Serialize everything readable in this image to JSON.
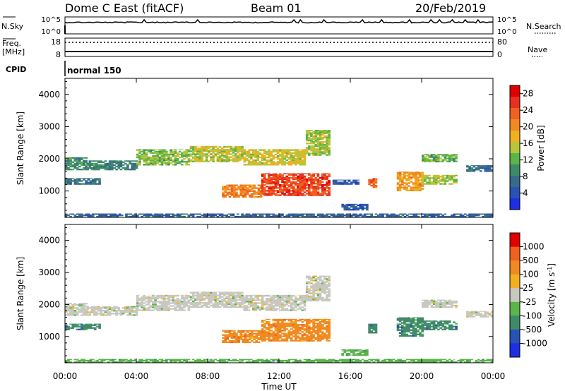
{
  "header": {
    "station": "Dome C East (fitACF)",
    "beam": "Beam 01",
    "date": "20/Feb/2019"
  },
  "strip": {
    "nsky_label": "N.Sky",
    "nsky_ticks": [
      "10^5",
      "10^0"
    ],
    "nsearch_label": "N.Search",
    "freq_label_1": "Freq.",
    "freq_label_2": "[MHz]",
    "freq_ticks": [
      "18",
      "8"
    ],
    "nave_label": "Nave",
    "nave_ticks": [
      "80",
      "0"
    ],
    "cpid_label": "CPID",
    "cpid_value": "normal 150"
  },
  "x_axis": {
    "label": "Time UT",
    "ticks": [
      "00:00",
      "04:00",
      "08:00",
      "12:00",
      "16:00",
      "20:00",
      "00:00"
    ]
  },
  "chart_data": [
    {
      "type": "heatmap",
      "name": "power",
      "ylabel": "Slant Range [km]",
      "ylim": [
        180,
        4500
      ],
      "y_ticks": [
        1000,
        2000,
        3000,
        4000
      ],
      "x_unit": "hours UT",
      "xlim": [
        0,
        24
      ],
      "colorbar": {
        "label": "Power [dB]",
        "ticks": [
          "4",
          "8",
          "12",
          "16",
          "20",
          "24",
          "28"
        ],
        "range": [
          0,
          30
        ],
        "colors": [
          "#1d2fe0",
          "#2a52b5",
          "#3a6a8a",
          "#3f8a6a",
          "#5ab54a",
          "#b8c43a",
          "#f0b020",
          "#f08a20",
          "#f06020",
          "#e83020",
          "#e00000"
        ]
      },
      "regions": [
        {
          "t": [
            0.0,
            1.2
          ],
          "r": [
            1650,
            2050
          ],
          "v": 9
        },
        {
          "t": [
            1.2,
            4.0
          ],
          "r": [
            1650,
            1950
          ],
          "v": 8
        },
        {
          "t": [
            4.0,
            7.0
          ],
          "r": [
            1800,
            2300
          ],
          "v": 13
        },
        {
          "t": [
            7.0,
            10.0
          ],
          "r": [
            1900,
            2400
          ],
          "v": 15
        },
        {
          "t": [
            10.0,
            13.5
          ],
          "r": [
            1800,
            2300
          ],
          "v": 16
        },
        {
          "t": [
            13.5,
            14.8
          ],
          "r": [
            2100,
            2900
          ],
          "v": 14
        },
        {
          "t": [
            8.8,
            11.0
          ],
          "r": [
            800,
            1200
          ],
          "v": 22
        },
        {
          "t": [
            11.0,
            14.8
          ],
          "r": [
            850,
            1550
          ],
          "v": 26
        },
        {
          "t": [
            0.0,
            2.0
          ],
          "r": [
            1200,
            1400
          ],
          "v": 7
        },
        {
          "t": [
            17.0,
            17.5
          ],
          "r": [
            1100,
            1400
          ],
          "v": 24
        },
        {
          "t": [
            18.6,
            20.0
          ],
          "r": [
            1000,
            1600
          ],
          "v": 20
        },
        {
          "t": [
            20.0,
            22.0
          ],
          "r": [
            1200,
            1500
          ],
          "v": 14
        },
        {
          "t": [
            20.0,
            22.0
          ],
          "r": [
            1900,
            2150
          ],
          "v": 12
        },
        {
          "t": [
            22.5,
            24.0
          ],
          "r": [
            1600,
            1800
          ],
          "v": 6
        },
        {
          "t": [
            15.0,
            16.5
          ],
          "r": [
            1200,
            1350
          ],
          "v": 4
        },
        {
          "t": [
            15.5,
            17.0
          ],
          "r": [
            400,
            600
          ],
          "v": 4
        },
        {
          "t": [
            0.0,
            24.0
          ],
          "r": [
            180,
            300
          ],
          "v": 5
        }
      ]
    },
    {
      "type": "heatmap",
      "name": "velocity",
      "ylabel": "Slant Range [km]",
      "ylim": [
        180,
        4500
      ],
      "y_ticks": [
        1000,
        2000,
        3000,
        4000
      ],
      "x_unit": "hours UT",
      "xlim": [
        0,
        24
      ],
      "colorbar": {
        "label": "Velocity [m s^-1]",
        "ticks": [
          "1000",
          "500",
          "100",
          "25",
          "-25",
          "-100",
          "-500",
          "-1000"
        ],
        "colors": [
          "#1d2fe0",
          "#2a52b5",
          "#3f8a6a",
          "#5ab54a",
          "#c8c8c0",
          "#f0b020",
          "#f08a20",
          "#f06020",
          "#e00000"
        ]
      },
      "regions": [
        {
          "t": [
            0.0,
            1.2
          ],
          "r": [
            1650,
            2050
          ],
          "c": 4
        },
        {
          "t": [
            1.2,
            4.0
          ],
          "r": [
            1650,
            1950
          ],
          "c": 4
        },
        {
          "t": [
            4.0,
            7.0
          ],
          "r": [
            1800,
            2300
          ],
          "c": 4
        },
        {
          "t": [
            7.0,
            10.0
          ],
          "r": [
            1900,
            2400
          ],
          "c": 4
        },
        {
          "t": [
            10.0,
            13.5
          ],
          "r": [
            1800,
            2300
          ],
          "c": 4
        },
        {
          "t": [
            13.5,
            14.8
          ],
          "r": [
            2100,
            2900
          ],
          "c": 4
        },
        {
          "t": [
            8.8,
            11.0
          ],
          "r": [
            800,
            1200
          ],
          "c": 6
        },
        {
          "t": [
            11.0,
            14.8
          ],
          "r": [
            850,
            1550
          ],
          "c": 6
        },
        {
          "t": [
            0.0,
            2.0
          ],
          "r": [
            1200,
            1400
          ],
          "c": 2
        },
        {
          "t": [
            17.0,
            17.5
          ],
          "r": [
            1100,
            1400
          ],
          "c": 2
        },
        {
          "t": [
            18.6,
            20.0
          ],
          "r": [
            1000,
            1600
          ],
          "c": 2
        },
        {
          "t": [
            20.0,
            22.0
          ],
          "r": [
            1200,
            1500
          ],
          "c": 2
        },
        {
          "t": [
            20.0,
            22.0
          ],
          "r": [
            1900,
            2150
          ],
          "c": 4
        },
        {
          "t": [
            22.5,
            24.0
          ],
          "r": [
            1600,
            1800
          ],
          "c": 4
        },
        {
          "t": [
            15.5,
            17.0
          ],
          "r": [
            400,
            600
          ],
          "c": 3
        },
        {
          "t": [
            0.0,
            24.0
          ],
          "r": [
            180,
            300
          ],
          "c": 3
        }
      ]
    }
  ]
}
